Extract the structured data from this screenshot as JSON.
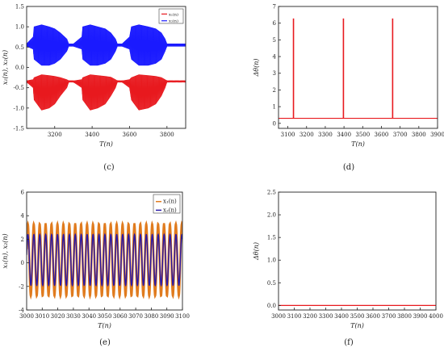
{
  "chart_data": [
    {
      "panel": "(c)",
      "type": "line",
      "xlabel": "T(n)",
      "ylabel": "x₁(n), x₂(n)",
      "xlim": [
        3050,
        3900
      ],
      "ylim": [
        -1.5,
        1.5
      ],
      "xticks": [
        3200,
        3400,
        3600,
        3800
      ],
      "yticks": [
        -1.5,
        -1.0,
        -0.5,
        0.0,
        0.5,
        1.0,
        1.5
      ],
      "legend": "top-right",
      "series": [
        {
          "name": "x₁(n)",
          "color": "#e8191e",
          "x": [
            3050,
            3085,
            3090,
            3130,
            3170,
            3200,
            3230,
            3265,
            3275,
            3300,
            3345,
            3350,
            3390,
            3430,
            3470,
            3500,
            3525,
            3535,
            3560,
            3600,
            3610,
            3650,
            3700,
            3740,
            3770,
            3790,
            3800,
            3830,
            3870,
            3900
          ],
          "upper": [
            -0.33,
            -0.3,
            -0.25,
            -0.18,
            -0.2,
            -0.22,
            -0.25,
            -0.3,
            -0.33,
            -0.33,
            -0.3,
            -0.25,
            -0.18,
            -0.2,
            -0.22,
            -0.24,
            -0.3,
            -0.33,
            -0.33,
            -0.3,
            -0.25,
            -0.18,
            -0.2,
            -0.22,
            -0.25,
            -0.3,
            -0.33,
            -0.33,
            -0.33,
            -0.33
          ],
          "lower": [
            -0.36,
            -0.5,
            -0.8,
            -1.05,
            -1.0,
            -0.9,
            -0.7,
            -0.5,
            -0.36,
            -0.36,
            -0.5,
            -0.8,
            -1.05,
            -1.0,
            -0.9,
            -0.7,
            -0.5,
            -0.36,
            -0.36,
            -0.5,
            -0.8,
            -1.05,
            -1.0,
            -0.9,
            -0.7,
            -0.5,
            -0.36,
            -0.36,
            -0.36,
            -0.36
          ]
        },
        {
          "name": "x₂(n)",
          "color": "#1a1aff",
          "x": [
            3050,
            3085,
            3090,
            3130,
            3170,
            3200,
            3230,
            3265,
            3275,
            3300,
            3345,
            3350,
            3390,
            3430,
            3470,
            3500,
            3525,
            3535,
            3560,
            3600,
            3610,
            3650,
            3700,
            3740,
            3770,
            3790,
            3800,
            3830,
            3870,
            3900
          ],
          "upper": [
            0.58,
            0.75,
            1.0,
            1.05,
            1.0,
            0.95,
            0.85,
            0.7,
            0.58,
            0.58,
            0.75,
            1.0,
            1.05,
            1.0,
            0.95,
            0.85,
            0.7,
            0.58,
            0.58,
            0.75,
            1.0,
            1.05,
            1.0,
            0.95,
            0.85,
            0.7,
            0.58,
            0.58,
            0.58,
            0.58
          ],
          "lower": [
            0.52,
            0.45,
            0.2,
            0.05,
            0.05,
            0.1,
            0.2,
            0.4,
            0.52,
            0.52,
            0.45,
            0.2,
            0.05,
            0.05,
            0.1,
            0.2,
            0.4,
            0.52,
            0.52,
            0.45,
            0.2,
            0.05,
            0.05,
            0.1,
            0.2,
            0.4,
            0.52,
            0.52,
            0.52,
            0.52
          ]
        }
      ]
    },
    {
      "panel": "(d)",
      "type": "line",
      "xlabel": "T(n)",
      "ylabel": "Δθ(n)",
      "xlim": [
        3050,
        3900
      ],
      "ylim": [
        -0.3,
        7
      ],
      "xticks": [
        3100,
        3200,
        3300,
        3400,
        3500,
        3600,
        3700,
        3800,
        3900
      ],
      "yticks": [
        0,
        1,
        2,
        3,
        4,
        5,
        6,
        7
      ],
      "baseline": 0.3,
      "spikes": [
        {
          "x": 3130,
          "y": 6.28
        },
        {
          "x": 3397,
          "y": 6.28
        },
        {
          "x": 3660,
          "y": 6.28
        }
      ],
      "series": [
        {
          "color": "#e8191e"
        }
      ]
    },
    {
      "panel": "(e)",
      "type": "line",
      "xlabel": "T(n)",
      "ylabel": "x₁(n), x₂(n)",
      "xlim": [
        3000,
        3100
      ],
      "ylim": [
        -4,
        6
      ],
      "xticks": [
        3000,
        3010,
        3020,
        3030,
        3040,
        3050,
        3060,
        3070,
        3080,
        3090,
        3100
      ],
      "yticks": [
        -4,
        -2,
        0,
        2,
        4,
        6
      ],
      "legend": "top-right",
      "series": [
        {
          "name": "x₁(n)",
          "color": "#e07b1e",
          "min": -2.8,
          "max": 3.3,
          "period": 3.8
        },
        {
          "name": "x₂(n)",
          "color": "#2a1aa8",
          "min": -1.9,
          "max": 2.4,
          "period": 3.8
        }
      ]
    },
    {
      "panel": "(f)",
      "type": "line",
      "xlabel": "T(n)",
      "ylabel": "Δθ(n)",
      "xlim": [
        3000,
        4000
      ],
      "ylim": [
        -0.1,
        2.5
      ],
      "xticks": [
        3000,
        3100,
        3200,
        3300,
        3400,
        3500,
        3600,
        3700,
        3800,
        3900,
        4000
      ],
      "yticks": [
        0.0,
        0.5,
        1.0,
        1.5,
        2.0,
        2.5
      ],
      "constant": 0.0,
      "series": [
        {
          "color": "#e8191e"
        }
      ]
    }
  ]
}
